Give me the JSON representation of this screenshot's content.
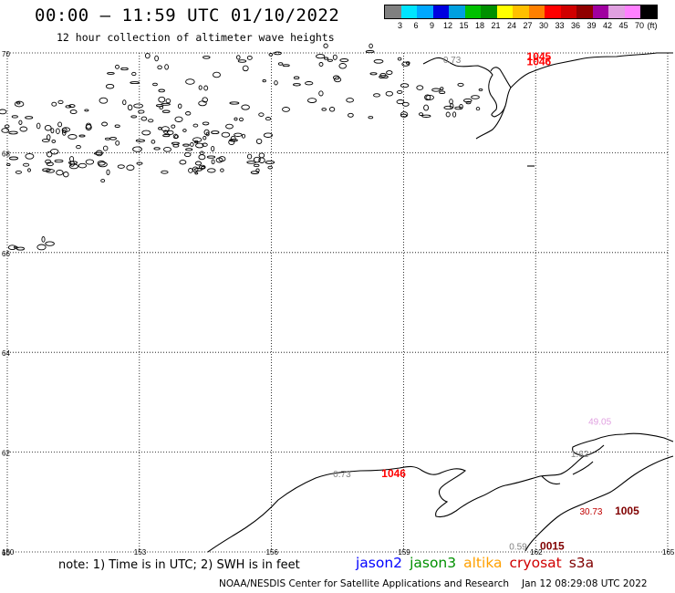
{
  "title": "00:00 – 11:59 UTC 01/10/2022",
  "subtitle": "12 hour collection of altimeter wave heights",
  "legend": {
    "colors": [
      "#808080",
      "#00e5ff",
      "#00a8ff",
      "#0000e0",
      "#00a0e0",
      "#00c000",
      "#009000",
      "#ffff00",
      "#ffc000",
      "#ff8000",
      "#ff0000",
      "#d00000",
      "#900000",
      "#a000a0",
      "#e0a0e0",
      "#ff80ff",
      "#000000"
    ],
    "labels": [
      "3",
      "6",
      "9",
      "12",
      "15",
      "18",
      "21",
      "24",
      "27",
      "30",
      "33",
      "36",
      "39",
      "42",
      "45",
      "70"
    ],
    "unit": "(ft)"
  },
  "axes": {
    "lat_labels": [
      "70",
      "68",
      "66",
      "64",
      "62",
      "60"
    ],
    "lon_labels": [
      "150",
      "153",
      "156",
      "159",
      "162",
      "165"
    ]
  },
  "annotations": [
    {
      "text": "0.73",
      "color": "#808080",
      "lon": 159.9,
      "lat": 69.8
    },
    {
      "text": "1045",
      "color": "#ff0000",
      "lon": 161.8,
      "lat": 69.85
    },
    {
      "text": "1046",
      "color": "#ff0000",
      "lon": 161.8,
      "lat": 69.75
    },
    {
      "text": "0.73",
      "color": "#808080",
      "lon": 157.4,
      "lat": 61.5
    },
    {
      "text": "1046",
      "color": "#ff0000",
      "lon": 158.5,
      "lat": 61.5
    },
    {
      "text": "49.05",
      "color": "#e0a0e0",
      "lon": 163.2,
      "lat": 62.55
    },
    {
      "text": "1.62",
      "color": "#808080",
      "lon": 162.8,
      "lat": 61.9
    },
    {
      "text": "30.73",
      "color": "#c00000",
      "lon": 163.0,
      "lat": 60.75
    },
    {
      "text": "1005",
      "color": "#800000",
      "lon": 163.8,
      "lat": 60.75
    },
    {
      "text": "0.59",
      "color": "#808080",
      "lon": 161.4,
      "lat": 60.05
    },
    {
      "text": "0015",
      "color": "#800000",
      "lon": 162.1,
      "lat": 60.05
    }
  ],
  "note": "note: 1) Time is in UTC; 2) SWH is in feet",
  "satellites": [
    {
      "name": "jason2",
      "color": "#0000ff"
    },
    {
      "name": "jason3",
      "color": "#009000"
    },
    {
      "name": "altika",
      "color": "#ffa000"
    },
    {
      "name": "cryosat",
      "color": "#d00000"
    },
    {
      "name": "s3a",
      "color": "#800000"
    }
  ],
  "credit": "NOAA/NESDIS Center for Satellite Applications and Research",
  "timestamp": "Jan 12 08:29:08 UTC 2022"
}
